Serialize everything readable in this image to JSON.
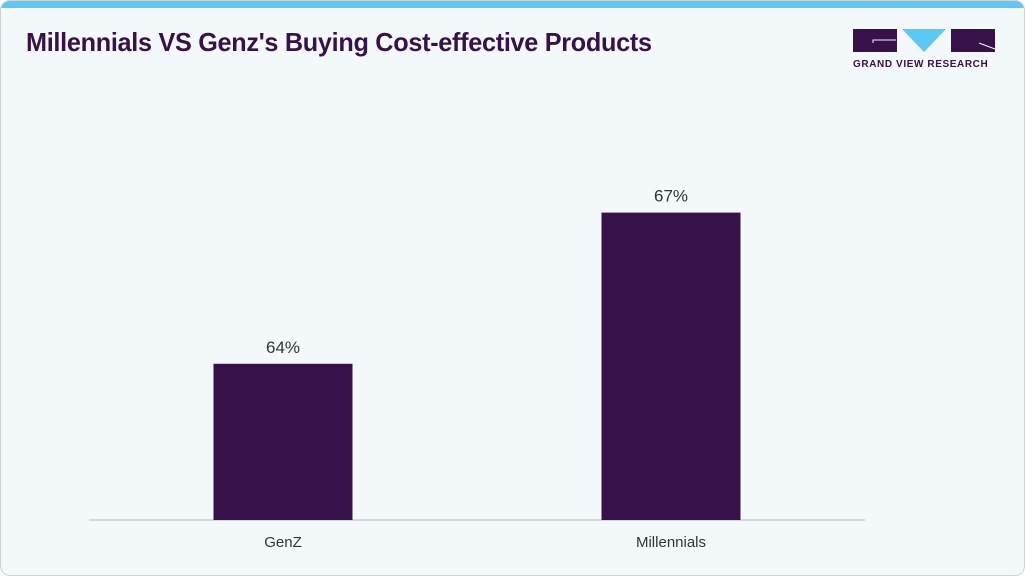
{
  "header": {
    "title": "Millennials VS Genz's Buying Cost-effective Products",
    "logo_text": "GRAND VIEW RESEARCH"
  },
  "colors": {
    "accent_bar": "#5bc8f5",
    "bar": "#37114a",
    "title": "#37114a",
    "logo_triangle": "#5bc8f5"
  },
  "chart_data": {
    "type": "bar",
    "title": "Millennials VS Genz's Buying Cost-effective Products",
    "categories": [
      "GenZ",
      "Millennials"
    ],
    "values": [
      64,
      67
    ],
    "value_labels": [
      "64%",
      "67%"
    ],
    "unit": "%",
    "xlabel": "",
    "ylabel": "",
    "ylim": [
      60.9,
      68.5
    ],
    "grid": false,
    "legend": "none"
  }
}
